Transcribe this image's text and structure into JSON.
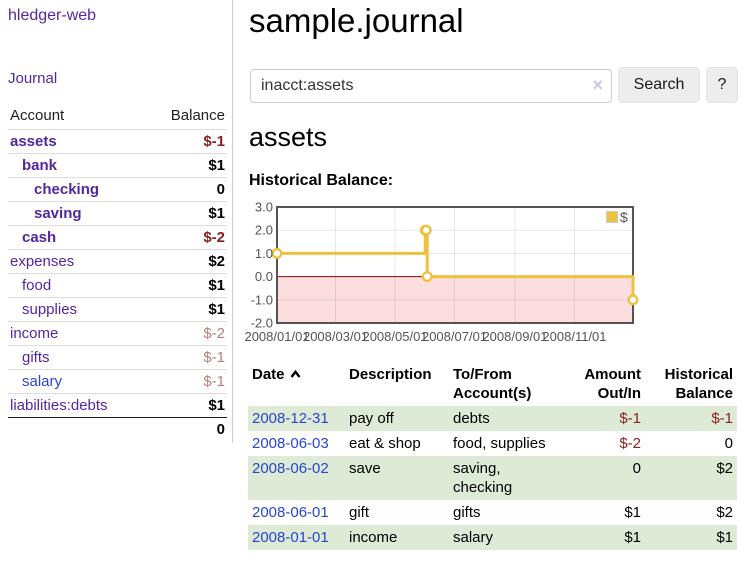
{
  "app": {
    "brand": "hledger-web"
  },
  "sidebar": {
    "journal_link": "Journal",
    "accounts_table": {
      "headers": {
        "account": "Account",
        "balance": "Balance"
      },
      "rows": [
        {
          "name": "assets",
          "balance": "$-1"
        },
        {
          "name": "bank",
          "balance": "$1"
        },
        {
          "name": "checking",
          "balance": "0"
        },
        {
          "name": "saving",
          "balance": "$1"
        },
        {
          "name": "cash",
          "balance": "$-2"
        },
        {
          "name": "expenses",
          "balance": "$2"
        },
        {
          "name": "food",
          "balance": "$1"
        },
        {
          "name": "supplies",
          "balance": "$1"
        },
        {
          "name": "income",
          "balance": "$-2"
        },
        {
          "name": "gifts",
          "balance": "$-1"
        },
        {
          "name": "salary",
          "balance": "$-1"
        },
        {
          "name": "liabilities:debts",
          "balance": "$1"
        }
      ],
      "total": "0"
    }
  },
  "header": {
    "title": "sample.journal"
  },
  "search": {
    "value": "inacct:assets",
    "clear_label": "×",
    "button": "Search",
    "help_button": "?"
  },
  "account_page": {
    "heading": "assets",
    "chart_label": "Historical Balance:"
  },
  "chart_data": {
    "type": "line",
    "steps": true,
    "series": [
      {
        "name": "$",
        "color": "#edc240",
        "points": [
          {
            "x": "2008-01-01",
            "y": 1
          },
          {
            "x": "2008-06-01",
            "y": 2
          },
          {
            "x": "2008-06-02",
            "y": 2
          },
          {
            "x": "2008-06-03",
            "y": 0
          },
          {
            "x": "2008-12-31",
            "y": -1
          }
        ]
      }
    ],
    "xlim": [
      "2008-01-01",
      "2008-12-31"
    ],
    "ylim": [
      -2,
      3
    ],
    "yticks": [
      "3.0",
      "2.0",
      "1.0",
      "0.0",
      "-1.0",
      "-2.0"
    ],
    "xticks": [
      {
        "x": "2008-01-01",
        "label": "2008/01/01"
      },
      {
        "x": "2008-03-01",
        "label": "2008/03/01"
      },
      {
        "x": "2008-05-01",
        "label": "2008/05/01"
      },
      {
        "x": "2008-07-01",
        "label": "2008/07/01"
      },
      {
        "x": "2008-09-01",
        "label": "2008/09/01"
      },
      {
        "x": "2008-11-01",
        "label": "2008/11/01"
      }
    ],
    "grid": true,
    "negative_region_fill": "#fcdede",
    "zero_line_color": "#8b0000",
    "border_color": "#545454",
    "tick_label_color": "#545454",
    "legend": {
      "label": "$",
      "position": "top-right"
    }
  },
  "register": {
    "headers": {
      "date": "Date",
      "description": "Description",
      "tofrom": "To/From Account(s)",
      "amount": "Amount Out/In",
      "balance": "Historical Balance"
    },
    "rows": [
      {
        "date": "2008-12-31",
        "description": "pay off",
        "accounts": "debts",
        "amount": "$-1",
        "balance": "$-1"
      },
      {
        "date": "2008-06-03",
        "description": "eat & shop",
        "accounts": "food, supplies",
        "amount": "$-2",
        "balance": "0"
      },
      {
        "date": "2008-06-02",
        "description": "save",
        "accounts": "saving, checking",
        "amount": "0",
        "balance": "$2"
      },
      {
        "date": "2008-06-01",
        "description": "gift",
        "accounts": "gifts",
        "amount": "$1",
        "balance": "$2"
      },
      {
        "date": "2008-01-01",
        "description": "income",
        "accounts": "salary",
        "amount": "$1",
        "balance": "$1"
      }
    ]
  }
}
